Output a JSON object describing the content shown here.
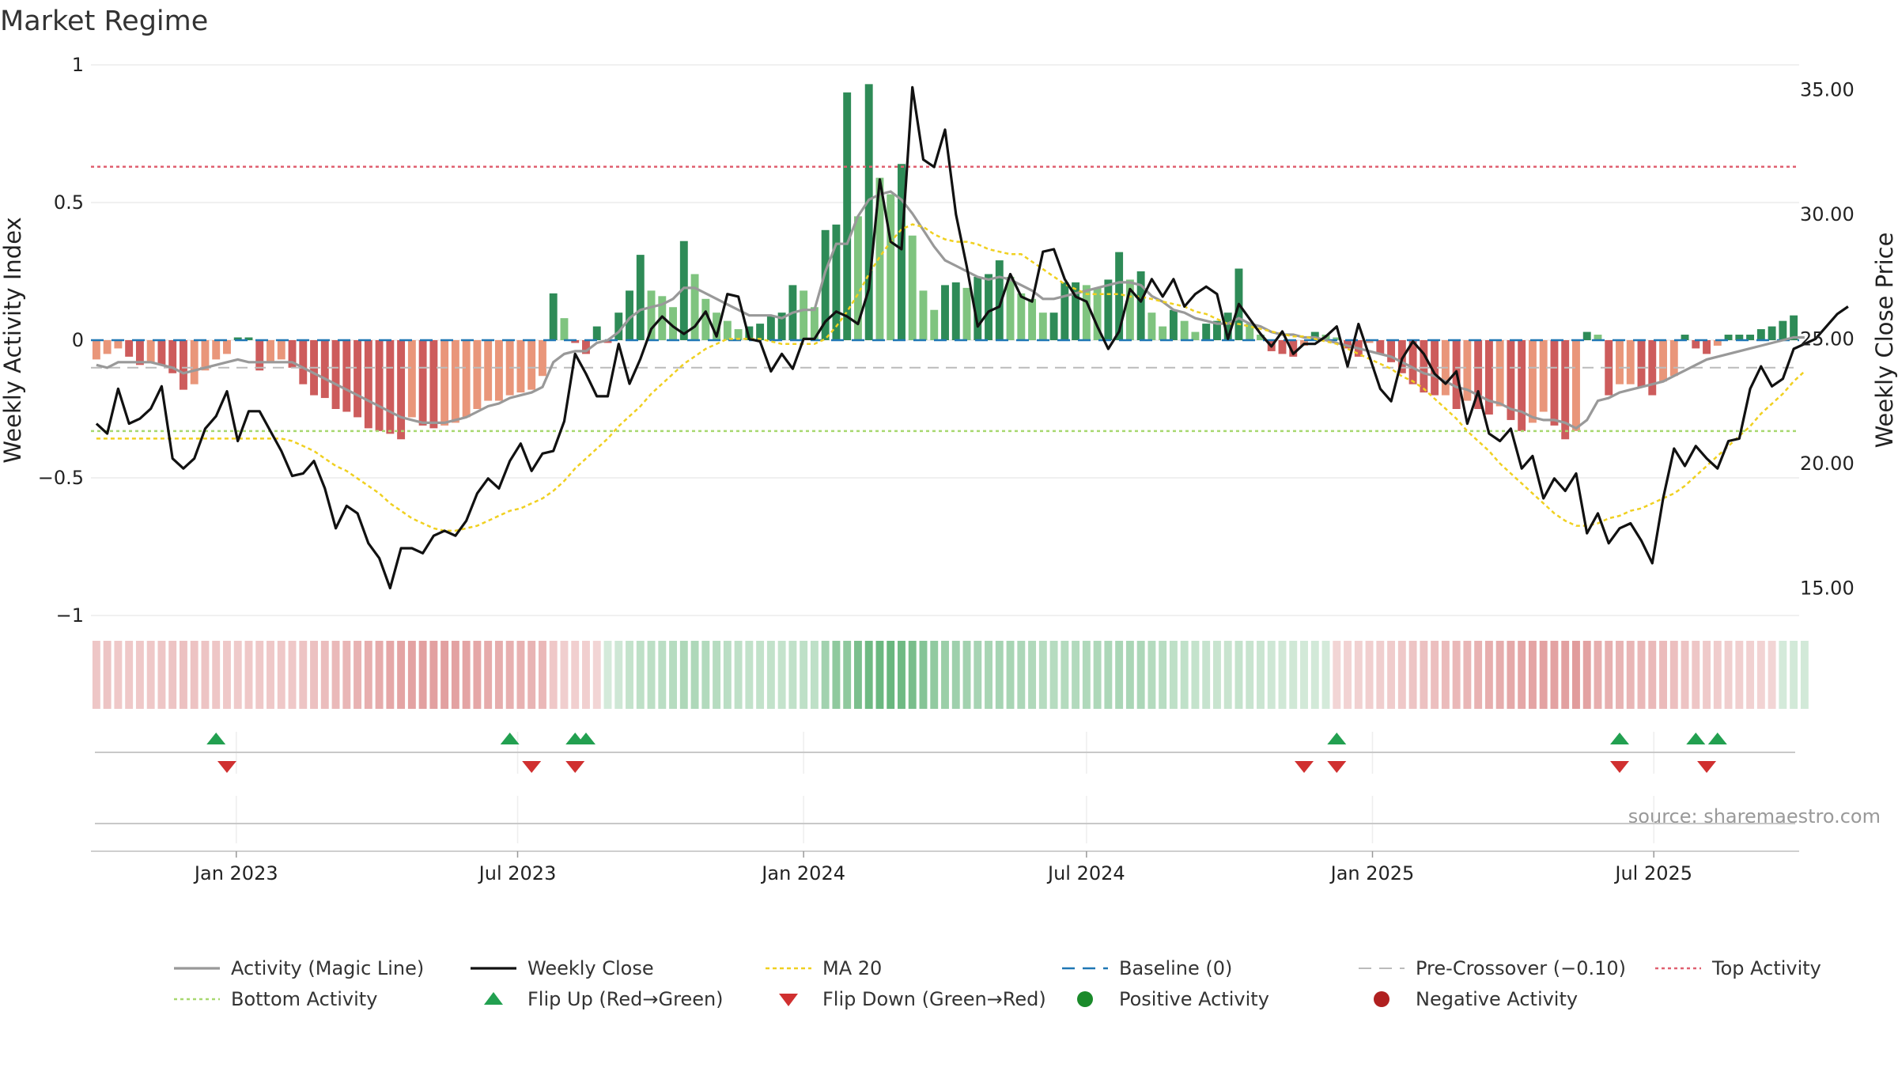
{
  "title": "Market Regime",
  "source": "source: sharemaestro.com",
  "colors": {
    "pos_dark": "#2e8b57",
    "pos_light": "#7fc47f",
    "neg_dark": "#cd5c5c",
    "neg_light": "#e9967a",
    "magic": "#999999",
    "close": "#111111",
    "ma": "#f0d020",
    "baseline": "#1f77b4",
    "precross": "#bbbbbb",
    "top": "#e06070",
    "bottom": "#a8d870",
    "flip_up": "#22a050",
    "flip_down": "#d03030",
    "pos_dot": "#1a8a2a",
    "neg_dot": "#b02020"
  },
  "chart_data": {
    "type": "bar",
    "start": "2022-10-03",
    "interval_days": 7,
    "ylabel_left": "Weekly Activity Index",
    "ylabel_right": "Weekly Close Price",
    "ylim_left": [
      -1,
      1
    ],
    "ylim_right": [
      13.9,
      36.0
    ],
    "yticks_left": [
      {
        "v": 1,
        "label": "1"
      },
      {
        "v": 0.5,
        "label": "0.5"
      },
      {
        "v": 0,
        "label": "0"
      },
      {
        "v": -0.5,
        "label": "−0.5"
      },
      {
        "v": -1,
        "label": "−1"
      }
    ],
    "yticks_right": [
      {
        "v": 35,
        "label": "35.00"
      },
      {
        "v": 30,
        "label": "30.00"
      },
      {
        "v": 25,
        "label": "25.00"
      },
      {
        "v": 20,
        "label": "20.00"
      },
      {
        "v": 15,
        "label": "15.00"
      }
    ],
    "xticks": [
      {
        "date": "2023-01-01",
        "label": "Jan 2023"
      },
      {
        "date": "2023-07-01",
        "label": "Jul 2023"
      },
      {
        "date": "2024-01-01",
        "label": "Jan 2024"
      },
      {
        "date": "2024-07-01",
        "label": "Jul 2024"
      },
      {
        "date": "2025-01-01",
        "label": "Jan 2025"
      },
      {
        "date": "2025-07-01",
        "label": "Jul 2025"
      }
    ],
    "top_activity": 0.63,
    "bottom_activity": -0.33,
    "pre_crossover": -0.1,
    "activity": [
      -0.07,
      -0.05,
      -0.03,
      -0.06,
      -0.09,
      -0.08,
      -0.09,
      -0.12,
      -0.18,
      -0.16,
      -0.11,
      -0.07,
      -0.05,
      0.01,
      0.01,
      -0.11,
      -0.08,
      -0.07,
      -0.1,
      -0.16,
      -0.2,
      -0.21,
      -0.25,
      -0.26,
      -0.28,
      -0.32,
      -0.33,
      -0.34,
      -0.36,
      -0.28,
      -0.31,
      -0.32,
      -0.31,
      -0.3,
      -0.28,
      -0.25,
      -0.22,
      -0.22,
      -0.2,
      -0.19,
      -0.18,
      -0.13,
      0.17,
      0.08,
      -0.01,
      -0.05,
      0.05,
      -0.01,
      0.1,
      0.18,
      0.31,
      0.18,
      0.16,
      0.12,
      0.36,
      0.24,
      0.15,
      0.1,
      0.07,
      0.04,
      0.05,
      0.06,
      0.09,
      0.1,
      0.2,
      0.18,
      0.12,
      0.4,
      0.42,
      0.9,
      0.45,
      0.93,
      0.59,
      0.53,
      0.64,
      0.38,
      0.18,
      0.11,
      0.2,
      0.21,
      0.19,
      0.23,
      0.24,
      0.29,
      0.23,
      0.17,
      0.15,
      0.1,
      0.1,
      0.21,
      0.21,
      0.2,
      0.19,
      0.22,
      0.32,
      0.22,
      0.25,
      0.1,
      0.05,
      0.11,
      0.07,
      0.03,
      0.06,
      0.07,
      0.1,
      0.26,
      0.06,
      0.02,
      -0.04,
      -0.05,
      -0.06,
      -0.02,
      0.03,
      0.02,
      0.01,
      -0.03,
      -0.06,
      -0.01,
      -0.05,
      -0.08,
      -0.12,
      -0.16,
      -0.19,
      -0.2,
      -0.2,
      -0.25,
      -0.22,
      -0.25,
      -0.27,
      -0.24,
      -0.29,
      -0.33,
      -0.3,
      -0.26,
      -0.31,
      -0.36,
      -0.33,
      0.03,
      0.02,
      -0.2,
      -0.16,
      -0.16,
      -0.17,
      -0.2,
      -0.15,
      -0.13,
      0.02,
      -0.03,
      -0.05,
      -0.02,
      0.02,
      0.02,
      0.02,
      0.04,
      0.05,
      0.07,
      0.09
    ],
    "magic": [
      -0.09,
      -0.1,
      -0.08,
      -0.08,
      -0.08,
      -0.08,
      -0.09,
      -0.1,
      -0.12,
      -0.11,
      -0.1,
      -0.09,
      -0.08,
      -0.07,
      -0.08,
      -0.08,
      -0.08,
      -0.08,
      -0.08,
      -0.1,
      -0.12,
      -0.14,
      -0.16,
      -0.18,
      -0.2,
      -0.22,
      -0.24,
      -0.26,
      -0.28,
      -0.29,
      -0.3,
      -0.3,
      -0.3,
      -0.29,
      -0.28,
      -0.26,
      -0.24,
      -0.23,
      -0.21,
      -0.2,
      -0.19,
      -0.17,
      -0.08,
      -0.05,
      -0.04,
      -0.04,
      -0.01,
      0.0,
      0.03,
      0.08,
      0.11,
      0.12,
      0.13,
      0.15,
      0.19,
      0.19,
      0.17,
      0.15,
      0.13,
      0.11,
      0.09,
      0.09,
      0.09,
      0.08,
      0.1,
      0.11,
      0.11,
      0.25,
      0.35,
      0.35,
      0.45,
      0.51,
      0.53,
      0.54,
      0.51,
      0.46,
      0.4,
      0.34,
      0.29,
      0.27,
      0.25,
      0.23,
      0.22,
      0.23,
      0.22,
      0.2,
      0.18,
      0.15,
      0.15,
      0.16,
      0.17,
      0.18,
      0.19,
      0.2,
      0.21,
      0.21,
      0.2,
      0.16,
      0.14,
      0.11,
      0.1,
      0.08,
      0.07,
      0.06,
      0.06,
      0.08,
      0.06,
      0.05,
      0.03,
      0.02,
      0.02,
      0.01,
      0.01,
      0.0,
      -0.01,
      -0.02,
      -0.03,
      -0.04,
      -0.05,
      -0.06,
      -0.08,
      -0.1,
      -0.12,
      -0.13,
      -0.15,
      -0.17,
      -0.18,
      -0.2,
      -0.22,
      -0.23,
      -0.25,
      -0.26,
      -0.28,
      -0.29,
      -0.29,
      -0.3,
      -0.32,
      -0.29,
      -0.22,
      -0.21,
      -0.19,
      -0.18,
      -0.17,
      -0.16,
      -0.15,
      -0.13,
      -0.11,
      -0.09,
      -0.07,
      -0.06,
      -0.05,
      -0.04,
      -0.03,
      -0.02,
      -0.01,
      0.0,
      0.01,
      0.01
    ],
    "close": [
      21.6,
      21.2,
      23.0,
      21.6,
      21.8,
      22.2,
      23.1,
      20.2,
      19.8,
      20.2,
      21.4,
      21.9,
      22.9,
      20.9,
      22.1,
      22.1,
      21.3,
      20.5,
      19.5,
      19.6,
      20.1,
      19.0,
      17.4,
      18.3,
      18.0,
      16.8,
      16.2,
      15.0,
      16.6,
      16.6,
      16.4,
      17.1,
      17.3,
      17.1,
      17.7,
      18.8,
      19.4,
      19.0,
      20.1,
      20.8,
      19.7,
      20.4,
      20.5,
      21.7,
      24.4,
      23.6,
      22.7,
      22.7,
      24.8,
      23.2,
      24.2,
      25.4,
      25.9,
      25.5,
      25.2,
      25.5,
      26.1,
      25.1,
      26.8,
      26.7,
      25.0,
      24.9,
      23.7,
      24.4,
      23.8,
      25.0,
      25.0,
      25.7,
      26.1,
      25.9,
      25.6,
      27.0,
      31.4,
      28.9,
      28.6,
      35.1,
      32.2,
      31.9,
      33.4,
      30.0,
      27.9,
      25.5,
      26.1,
      26.3,
      27.6,
      26.7,
      26.5,
      28.5,
      28.6,
      27.4,
      26.7,
      26.5,
      25.5,
      24.6,
      25.3,
      27.0,
      26.5,
      27.4,
      26.7,
      27.4,
      26.3,
      26.8,
      27.1,
      26.8,
      25.0,
      26.4,
      25.8,
      25.2,
      24.7,
      25.3,
      24.4,
      24.8,
      24.8,
      25.1,
      25.5,
      23.9,
      25.6,
      24.3,
      23.0,
      22.5,
      24.2,
      24.9,
      24.4,
      23.6,
      23.2,
      23.7,
      21.6,
      22.9,
      21.2,
      20.9,
      21.4,
      19.8,
      20.3,
      18.6,
      19.4,
      18.9,
      19.6,
      17.2,
      18.0,
      16.8,
      17.4,
      17.6,
      16.9,
      16.0,
      18.6,
      20.6,
      19.9,
      20.7,
      20.2,
      19.8,
      20.9,
      21.0,
      23.0,
      23.9,
      23.1,
      23.4,
      24.6,
      24.8,
      25.0,
      25.5,
      26.0,
      26.3
    ],
    "ma20": [
      21.0,
      21.0,
      21.0,
      21.0,
      21.0,
      21.0,
      21.0,
      21.0,
      21.0,
      21.0,
      21.0,
      21.0,
      21.0,
      21.0,
      21.0,
      21.0,
      21.0,
      21.0,
      20.9,
      20.7,
      20.5,
      20.2,
      19.9,
      19.7,
      19.4,
      19.1,
      18.8,
      18.4,
      18.1,
      17.8,
      17.6,
      17.4,
      17.3,
      17.3,
      17.4,
      17.5,
      17.7,
      17.9,
      18.1,
      18.2,
      18.4,
      18.6,
      18.9,
      19.3,
      19.8,
      20.2,
      20.6,
      21.0,
      21.5,
      21.9,
      22.3,
      22.8,
      23.2,
      23.6,
      24.0,
      24.3,
      24.6,
      24.8,
      25.0,
      25.0,
      25.0,
      25.0,
      24.9,
      24.8,
      24.8,
      24.8,
      24.8,
      25.0,
      25.5,
      26.1,
      26.8,
      27.6,
      28.3,
      28.9,
      29.4,
      29.6,
      29.5,
      29.2,
      29.0,
      28.9,
      28.9,
      28.8,
      28.6,
      28.5,
      28.4,
      28.4,
      28.1,
      27.8,
      27.5,
      27.2,
      27.0,
      26.8,
      26.8,
      26.8,
      26.8,
      26.7,
      26.7,
      26.6,
      26.5,
      26.4,
      26.3,
      26.1,
      26.0,
      25.8,
      25.6,
      25.6,
      25.5,
      25.4,
      25.3,
      25.2,
      25.1,
      25.1,
      25.0,
      24.9,
      24.8,
      24.6,
      24.4,
      24.2,
      24.0,
      23.8,
      23.5,
      23.3,
      23.0,
      22.6,
      22.2,
      21.8,
      21.3,
      20.9,
      20.5,
      20.0,
      19.6,
      19.2,
      18.8,
      18.4,
      18.0,
      17.7,
      17.5,
      17.5,
      17.6,
      17.8,
      17.9,
      18.1,
      18.2,
      18.4,
      18.6,
      18.8,
      19.1,
      19.5,
      19.9,
      20.3,
      20.7,
      21.1,
      21.5,
      22.0,
      22.4,
      22.8,
      23.3,
      23.7
    ],
    "flip_up_dates": [
      "2022-12-19",
      "2023-06-26",
      "2023-08-07",
      "2023-08-14",
      "2024-12-09",
      "2025-06-09",
      "2025-07-28",
      "2025-08-11"
    ],
    "flip_down_dates": [
      "2022-12-26",
      "2023-07-10",
      "2023-08-07",
      "2024-11-18",
      "2024-12-09",
      "2025-06-09",
      "2025-08-04"
    ],
    "positive_activity_dates": [],
    "negative_activity_dates": []
  },
  "legend": [
    {
      "key": "magic",
      "label": "Activity (Magic Line)"
    },
    {
      "key": "close",
      "label": "Weekly Close"
    },
    {
      "key": "ma20",
      "label": "MA 20"
    },
    {
      "key": "baseline",
      "label": "Baseline (0)"
    },
    {
      "key": "precross",
      "label": "Pre-Crossover (−0.10)"
    },
    {
      "key": "top",
      "label": "Top Activity"
    },
    {
      "key": "bottom",
      "label": "Bottom Activity"
    },
    {
      "key": "flipup",
      "label": "Flip Up (Red→Green)"
    },
    {
      "key": "flipdown",
      "label": "Flip Down (Green→Red)"
    },
    {
      "key": "posact",
      "label": "Positive Activity"
    },
    {
      "key": "negact",
      "label": "Negative Activity"
    }
  ]
}
